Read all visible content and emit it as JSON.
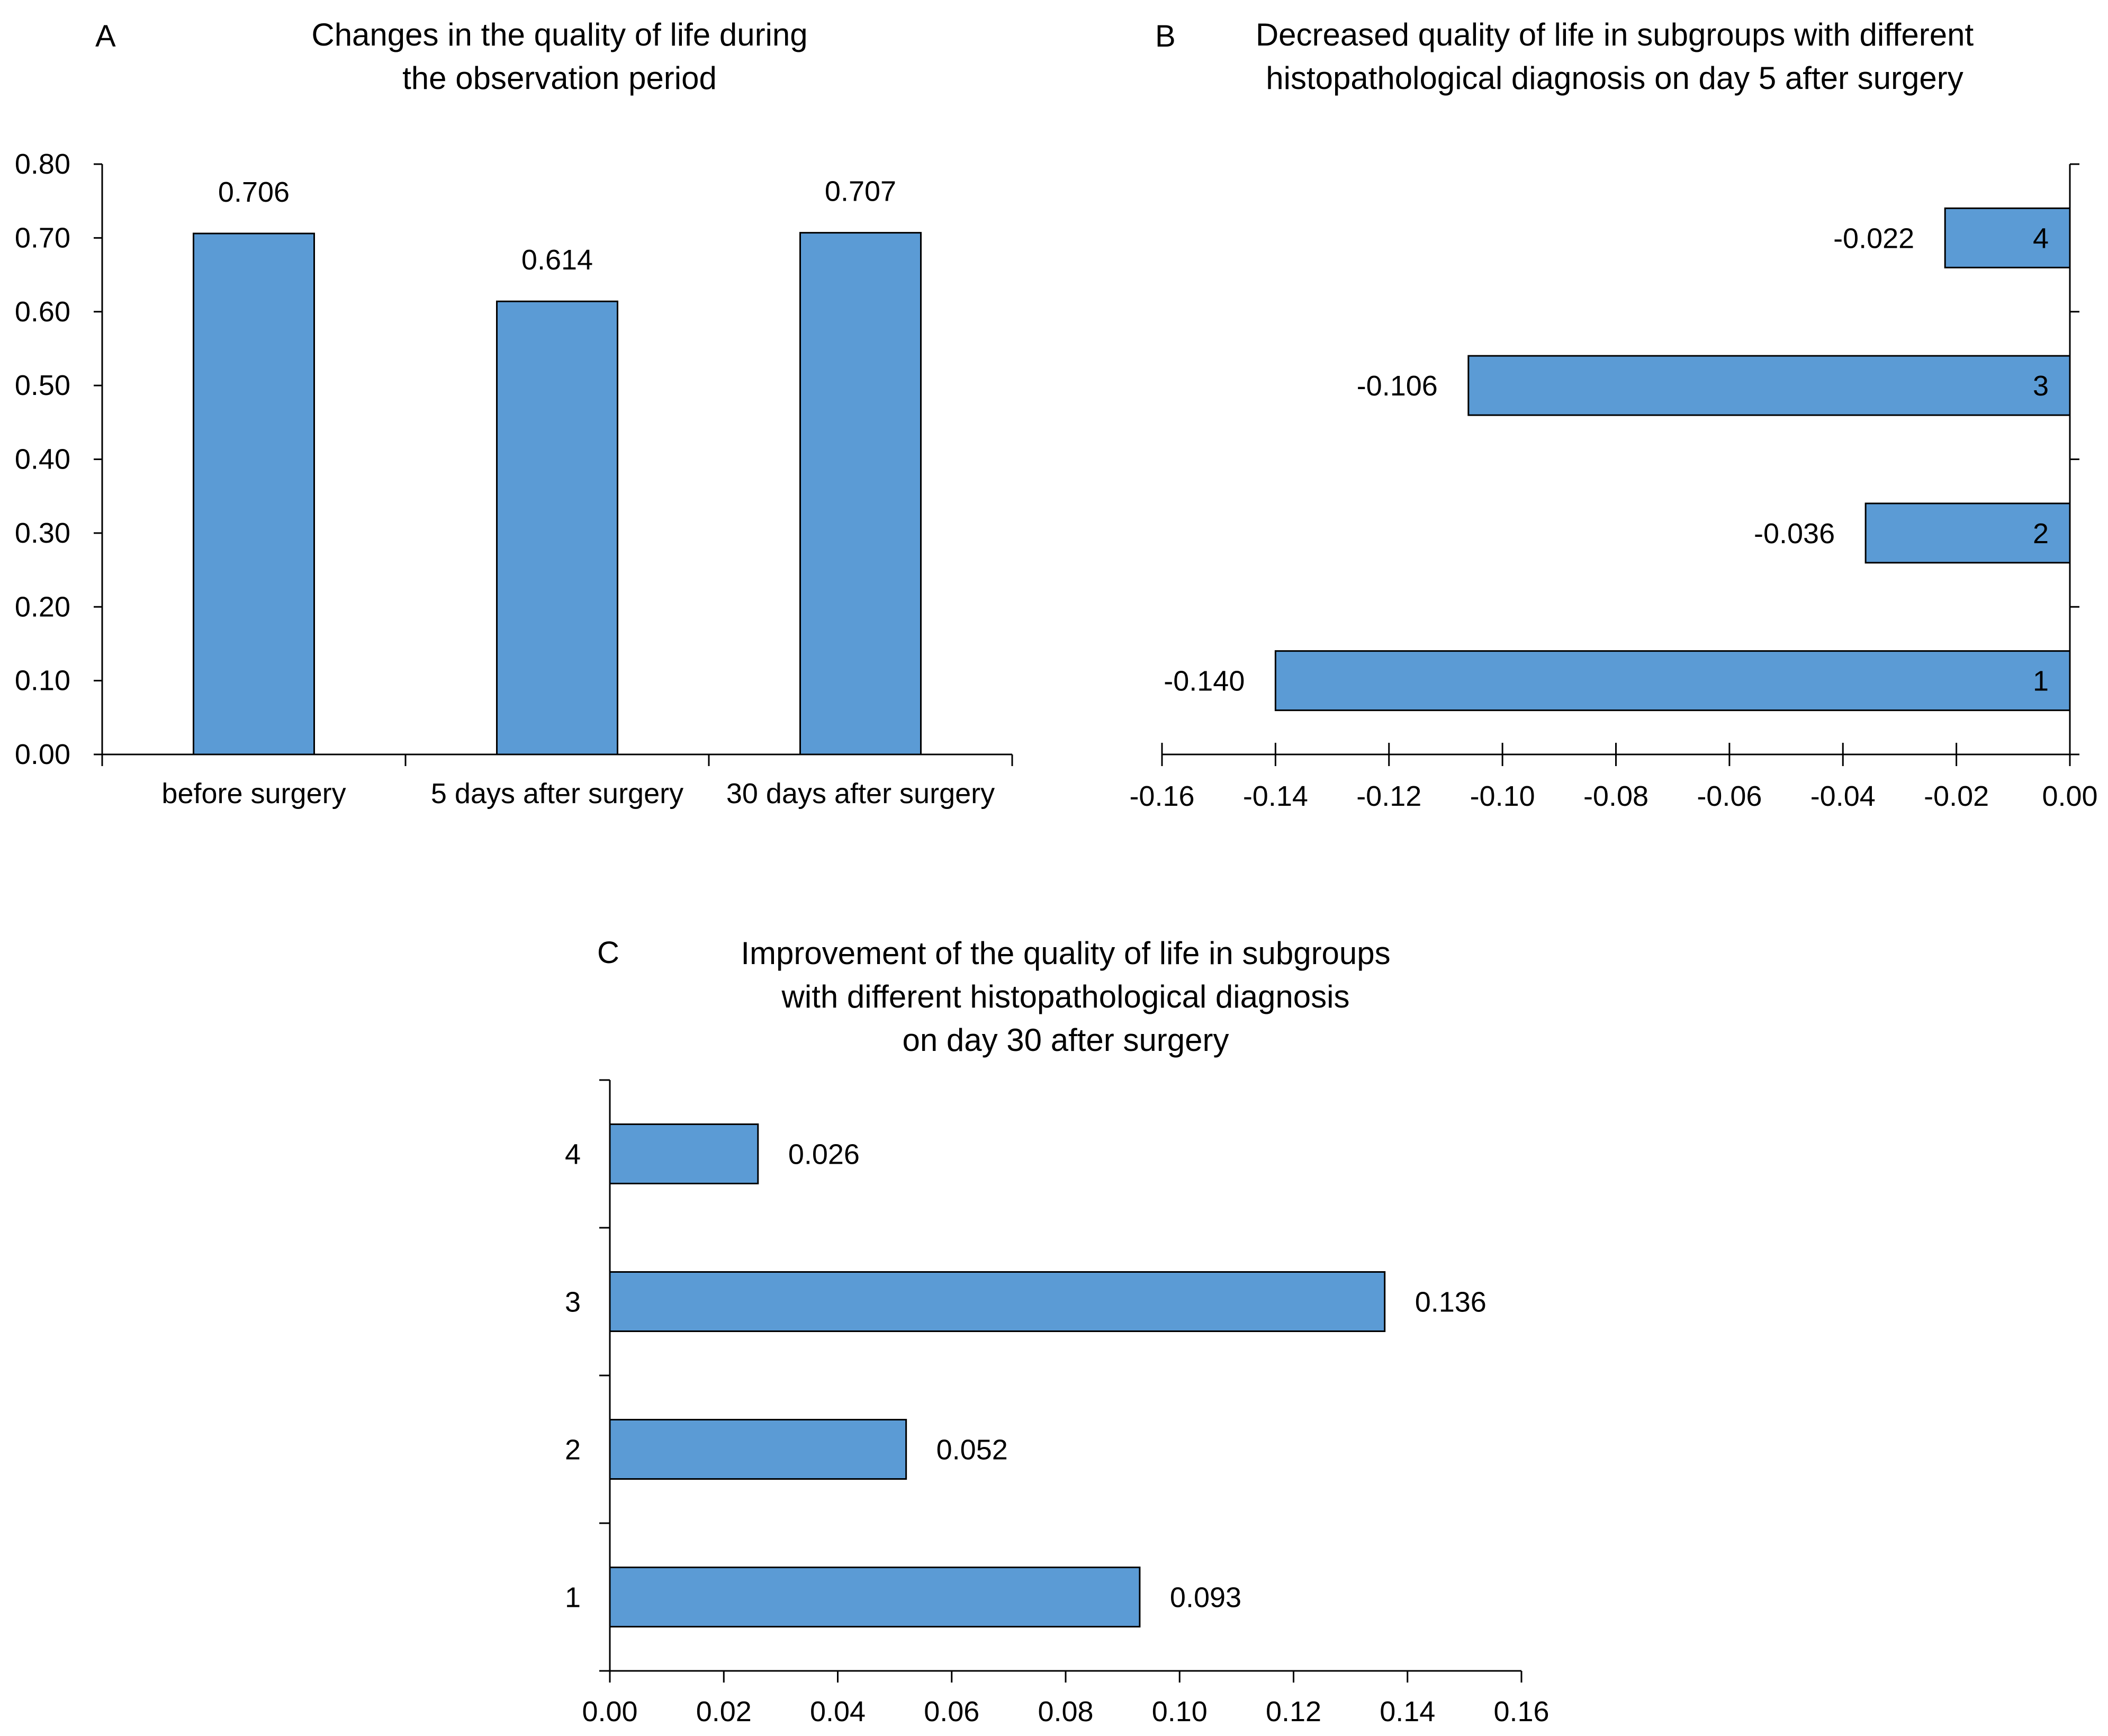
{
  "figure": {
    "panels": [
      "A",
      "B",
      "C"
    ]
  },
  "chart_data": [
    {
      "panel": "A",
      "type": "bar",
      "orientation": "vertical",
      "title_lines": [
        "Changes in the quality of life during",
        "the observation period"
      ],
      "categories": [
        "before surgery",
        "5 days after surgery",
        "30 days after surgery"
      ],
      "values": [
        0.706,
        0.614,
        0.707
      ],
      "value_labels": [
        "0.706",
        "0.614",
        "0.707"
      ],
      "ylim": [
        0,
        0.8
      ],
      "yticks": [
        "0.00",
        "0.10",
        "0.20",
        "0.30",
        "0.40",
        "0.50",
        "0.60",
        "0.70",
        "0.80"
      ],
      "xlabel": "",
      "ylabel": "",
      "bar_color": "#5b9bd5"
    },
    {
      "panel": "B",
      "type": "bar",
      "orientation": "horizontal",
      "title_lines": [
        "Decreased quality of life in subgroups with different",
        "histopathological diagnosis on day 5 after surgery"
      ],
      "categories": [
        "1",
        "2",
        "3",
        "4"
      ],
      "values": [
        -0.14,
        -0.036,
        -0.106,
        -0.022
      ],
      "value_labels": [
        "-0.140",
        "-0.036",
        "-0.106",
        "-0.022"
      ],
      "xlim": [
        -0.16,
        0
      ],
      "xticks": [
        "-0.16",
        "-0.14",
        "-0.12",
        "-0.10",
        "-0.08",
        "-0.06",
        "-0.04",
        "-0.02",
        "0.00"
      ],
      "xlabel": "",
      "ylabel": "",
      "bar_color": "#5b9bd5"
    },
    {
      "panel": "C",
      "type": "bar",
      "orientation": "horizontal",
      "title_lines": [
        "Improvement of the quality of life in subgroups",
        "with different histopathological diagnosis",
        "on day 30 after surgery"
      ],
      "categories": [
        "1",
        "2",
        "3",
        "4"
      ],
      "values": [
        0.093,
        0.052,
        0.136,
        0.026
      ],
      "value_labels": [
        "0.093",
        "0.052",
        "0.136",
        "0.026"
      ],
      "xlim": [
        0,
        0.16
      ],
      "xticks": [
        "0.00",
        "0.02",
        "0.04",
        "0.06",
        "0.08",
        "0.10",
        "0.12",
        "0.14",
        "0.16"
      ],
      "xlabel": "",
      "ylabel": "",
      "bar_color": "#5b9bd5"
    }
  ]
}
